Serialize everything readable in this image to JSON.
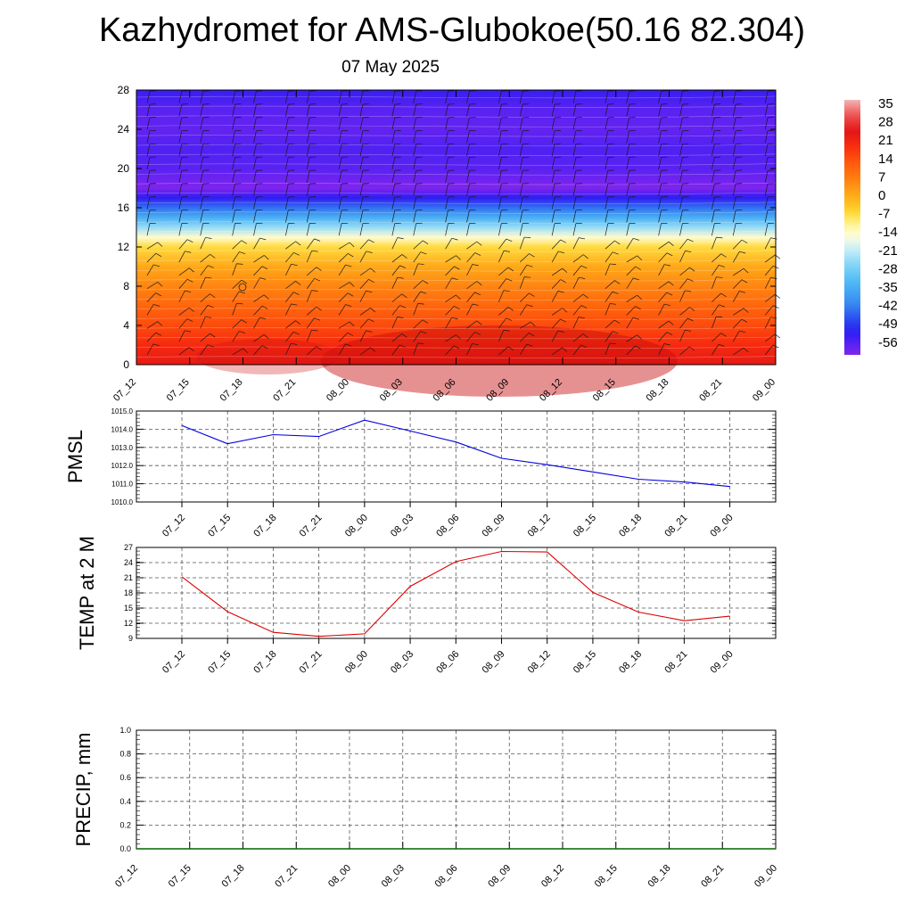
{
  "title": "Kazhydromet for AMS-Glubokoe(50.16 82.304)",
  "subtitle": "07 May 2025",
  "colors": {
    "pmsl_line": "#0000dd",
    "temp_line": "#dd0000",
    "precip_line": "#006400",
    "grid": "#555555"
  },
  "chart_data": [
    {
      "type": "heatmap",
      "name": "vertical-profile",
      "x_ticks": [
        "07_12",
        "07_15",
        "07_18",
        "07_21",
        "08_00",
        "08_03",
        "08_06",
        "08_09",
        "08_12",
        "08_15",
        "08_18",
        "08_21",
        "09_00"
      ],
      "y_ticks": [
        0,
        4,
        8,
        12,
        16,
        20,
        24,
        28
      ],
      "ylim": [
        0,
        28
      ],
      "colorbar": {
        "labels": [
          "35",
          "28",
          "21",
          "14",
          "7",
          "0",
          "-7",
          "-14",
          "-21",
          "-28",
          "-35",
          "-42",
          "-49",
          "-56"
        ],
        "range": [
          -60,
          37
        ]
      },
      "profile": {
        "heights": [
          0,
          2,
          4,
          6,
          8,
          10,
          12,
          13,
          14,
          15,
          16,
          17,
          18,
          19,
          20,
          22,
          24,
          26,
          28
        ],
        "values": [
          24,
          20,
          15,
          11,
          6,
          1,
          -6,
          -14,
          -24,
          -34,
          -43,
          -52,
          -60,
          -58,
          -56,
          -55,
          -57,
          -56,
          -53
        ]
      },
      "wind_barbs": true
    },
    {
      "type": "line",
      "name": "pmsl",
      "ylabel": "PMSL",
      "x": [
        "07_12",
        "07_15",
        "07_18",
        "07_21",
        "08_00",
        "08_03",
        "08_06",
        "08_09",
        "08_12",
        "08_15",
        "08_18",
        "08_21",
        "09_00"
      ],
      "values": [
        1014.2,
        1013.2,
        1013.7,
        1013.6,
        1014.5,
        1013.9,
        1013.3,
        1012.4,
        1012.05,
        1011.65,
        1011.25,
        1011.1,
        1010.85
      ],
      "ylim": [
        1010.0,
        1015.0
      ],
      "y_ticks": [
        "1010.0",
        "1011.0",
        "1012.0",
        "1013.0",
        "1014.0",
        "1015.0"
      ],
      "grid": true
    },
    {
      "type": "line",
      "name": "temp",
      "ylabel": "TEMP at 2 M",
      "x": [
        "07_12",
        "07_15",
        "07_18",
        "07_21",
        "08_00",
        "08_03",
        "08_06",
        "08_09",
        "08_12",
        "08_15",
        "08_18",
        "08_21",
        "09_00"
      ],
      "values": [
        21.2,
        14.3,
        10.2,
        9.4,
        9.9,
        19.3,
        24.2,
        26.2,
        26.1,
        18.1,
        14.2,
        12.5,
        13.4
      ],
      "ylim": [
        9,
        27
      ],
      "y_ticks": [
        "9",
        "12",
        "15",
        "18",
        "21",
        "24",
        "27"
      ],
      "grid": true
    },
    {
      "type": "line",
      "name": "precip",
      "ylabel": "PRECIP, mm",
      "x": [
        "07_12",
        "07_15",
        "07_18",
        "07_21",
        "08_00",
        "08_03",
        "08_06",
        "08_09",
        "08_12",
        "08_15",
        "08_18",
        "08_21",
        "09_00"
      ],
      "values": [
        0,
        0,
        0,
        0,
        0,
        0,
        0,
        0,
        0,
        0,
        0,
        0,
        0
      ],
      "ylim": [
        0.0,
        1.0
      ],
      "y_ticks": [
        "0.0",
        "0.2",
        "0.4",
        "0.6",
        "0.8",
        "1.0"
      ],
      "grid": true
    }
  ]
}
